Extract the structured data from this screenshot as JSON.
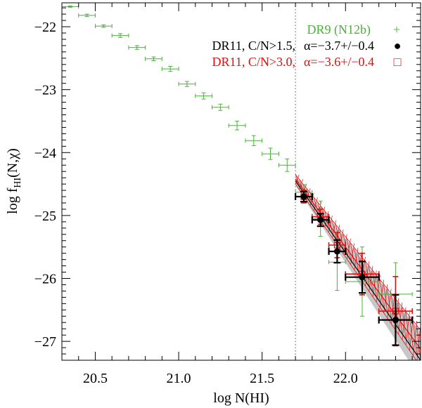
{
  "chart_data": {
    "type": "scatter",
    "xlabel": "log N(HI)",
    "ylabel_main": "log f",
    "ylabel_sub": "HI",
    "ylabel_tail": "(N,χ)",
    "xlim": [
      20.3,
      22.45
    ],
    "ylim": [
      -27.3,
      -21.62
    ],
    "x_ticks": [
      20.5,
      21.0,
      21.5,
      22.0
    ],
    "x_tick_labels": [
      "20.5",
      "21.0",
      "21.5",
      "22.0"
    ],
    "y_ticks": [
      -22,
      -23,
      -24,
      -25,
      -26,
      -27
    ],
    "y_tick_labels": [
      "−22",
      "−23",
      "−24",
      "−25",
      "−26",
      "−27"
    ],
    "threshold_x": 21.7,
    "colors": {
      "green": "#4caf3c",
      "black": "#000000",
      "red": "#e01010",
      "band": "#bdbdbd"
    },
    "legend": [
      {
        "label": "DR9 (N12b)",
        "alpha": "",
        "marker": "+",
        "color": "#4caf3c"
      },
      {
        "label": "DR11, C/N>1.5,",
        "alpha": "α=−3.7+/−0.4",
        "marker": "●",
        "color": "#000000"
      },
      {
        "label": "DR11, C/N>3.0,",
        "alpha": "α=−3.6+/−0.4",
        "marker": "□",
        "color": "#e01010"
      }
    ],
    "series": [
      {
        "name": "DR9 (N12b)",
        "style": "green_bars",
        "points": [
          {
            "x": 20.35,
            "y": -21.68,
            "xerr": 0.05,
            "yerr": 0.01
          },
          {
            "x": 20.45,
            "y": -21.82,
            "xerr": 0.05,
            "yerr": 0.02
          },
          {
            "x": 20.55,
            "y": -21.99,
            "xerr": 0.05,
            "yerr": 0.02
          },
          {
            "x": 20.65,
            "y": -22.14,
            "xerr": 0.05,
            "yerr": 0.03
          },
          {
            "x": 20.75,
            "y": -22.33,
            "xerr": 0.05,
            "yerr": 0.03
          },
          {
            "x": 20.85,
            "y": -22.51,
            "xerr": 0.05,
            "yerr": 0.03
          },
          {
            "x": 20.95,
            "y": -22.67,
            "xerr": 0.05,
            "yerr": 0.04
          },
          {
            "x": 21.05,
            "y": -22.91,
            "xerr": 0.05,
            "yerr": 0.04
          },
          {
            "x": 21.15,
            "y": -23.1,
            "xerr": 0.05,
            "yerr": 0.05
          },
          {
            "x": 21.25,
            "y": -23.28,
            "xerr": 0.05,
            "yerr": 0.05
          },
          {
            "x": 21.35,
            "y": -23.57,
            "xerr": 0.05,
            "yerr": 0.07
          },
          {
            "x": 21.45,
            "y": -23.81,
            "xerr": 0.05,
            "yerr": 0.08
          },
          {
            "x": 21.55,
            "y": -24.02,
            "xerr": 0.05,
            "yerr": 0.09
          },
          {
            "x": 21.65,
            "y": -24.2,
            "xerr": 0.05,
            "yerr": 0.1
          },
          {
            "x": 21.75,
            "y": -24.63,
            "xerr": 0.05,
            "yerr": 0.12
          },
          {
            "x": 21.85,
            "y": -25.05,
            "xerr": 0.05,
            "yerr": 0.28
          },
          {
            "x": 21.95,
            "y": -25.74,
            "xerr": 0.05,
            "yerr": 0.45
          },
          {
            "x": 22.1,
            "y": -26.05,
            "xerr": 0.1,
            "yerr": 0.55
          },
          {
            "x": 22.3,
            "y": -26.25,
            "xerr": 0.1,
            "yerr": 0.5
          }
        ]
      },
      {
        "name": "DR11, C/N>3.0",
        "style": "red_bars",
        "points": [
          {
            "x": 21.75,
            "y": -24.7,
            "xerr": 0.05,
            "yerr": 0.1
          },
          {
            "x": 21.85,
            "y": -25.02,
            "xerr": 0.05,
            "yerr": 0.12
          },
          {
            "x": 21.95,
            "y": -25.47,
            "xerr": 0.05,
            "yerr": 0.2
          },
          {
            "x": 22.1,
            "y": -25.93,
            "xerr": 0.1,
            "yerr": 0.33
          },
          {
            "x": 22.3,
            "y": -26.52,
            "xerr": 0.1,
            "yerr": 0.55
          }
        ]
      },
      {
        "name": "DR11, C/N>1.5",
        "style": "black_points",
        "points": [
          {
            "x": 21.75,
            "y": -24.7,
            "xerr": 0.05,
            "yerr": 0.08
          },
          {
            "x": 21.85,
            "y": -25.07,
            "xerr": 0.05,
            "yerr": 0.1
          },
          {
            "x": 21.95,
            "y": -25.57,
            "xerr": 0.05,
            "yerr": 0.18
          },
          {
            "x": 22.1,
            "y": -25.98,
            "xerr": 0.1,
            "yerr": 0.25
          },
          {
            "x": 22.3,
            "y": -26.66,
            "xerr": 0.1,
            "yerr": 0.4
          }
        ]
      }
    ],
    "fit_lines": {
      "black": [
        [
          21.7,
          -24.45
        ],
        [
          22.45,
          -27.3
        ]
      ],
      "red": [
        [
          21.7,
          -24.42
        ],
        [
          22.45,
          -27.12
        ]
      ],
      "band_upper": [
        [
          21.7,
          -24.38
        ],
        [
          22.45,
          -26.85
        ]
      ],
      "band_lower": [
        [
          21.7,
          -24.52
        ],
        [
          22.45,
          -27.6
        ]
      ]
    },
    "red_fit_lower": [
      [
        21.7,
        -24.5
      ],
      [
        22.45,
        -27.4
      ]
    ],
    "red_fit_upper": [
      [
        21.7,
        -24.35
      ],
      [
        22.45,
        -26.82
      ]
    ]
  }
}
